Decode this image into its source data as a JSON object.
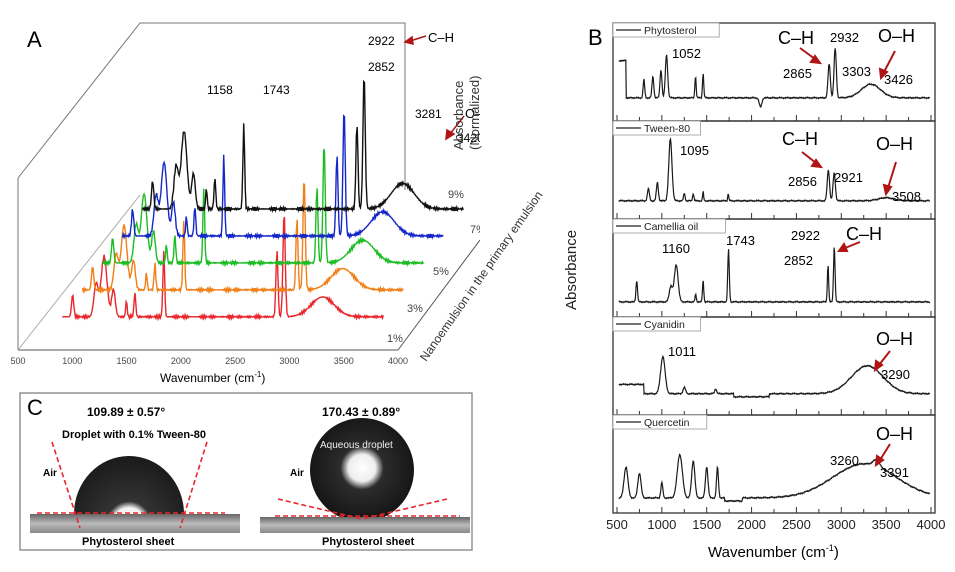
{
  "chart_data": [
    {
      "panel": "A",
      "type": "line",
      "title": "",
      "xlabel": "Wavenumber (cm-1)",
      "ylabel": "Absorbance (Normalized)",
      "zlabel": "Nanoemulsion in the primary emulsion",
      "xlim": [
        500,
        4000
      ],
      "x_ticks": [
        "500",
        "1000",
        "1500",
        "2000",
        "2500",
        "3000",
        "3500",
        "4000"
      ],
      "series": [
        {
          "name": "1%",
          "color": "#e8262b",
          "offset": 0
        },
        {
          "name": "3%",
          "color": "#f07f17",
          "offset": 1
        },
        {
          "name": "5%",
          "color": "#1cbd22",
          "offset": 2
        },
        {
          "name": "7%",
          "color": "#1427c8",
          "offset": 3
        },
        {
          "name": "9%",
          "color": "#111111",
          "offset": 4
        }
      ],
      "annotations": [
        "1158",
        "1743",
        "2852",
        "2922",
        "C–H",
        "3281",
        "3420",
        "O–H"
      ],
      "peaks": [
        {
          "x": 1158,
          "label": "1158"
        },
        {
          "x": 1743,
          "label": "1743"
        },
        {
          "x": 2852,
          "label": "2852"
        },
        {
          "x": 2922,
          "label": "2922"
        },
        {
          "x": 3281,
          "label": "3281"
        },
        {
          "x": 3420,
          "label": "3420"
        }
      ],
      "panel_label": "A"
    },
    {
      "panel": "B",
      "type": "line",
      "xlabel": "Wavenumber (cm-1)",
      "ylabel": "Absorbance",
      "xlim": [
        500,
        4000
      ],
      "x_ticks": [
        "500",
        "1000",
        "1500",
        "2000",
        "2500",
        "3000",
        "3500",
        "4000"
      ],
      "panel_label": "B",
      "series": [
        {
          "name": "Phytosterol",
          "peaks": [
            "1052",
            "2865",
            "2932",
            "3303",
            "3426"
          ],
          "groups": [
            "C–H",
            "O–H"
          ]
        },
        {
          "name": "Tween-80",
          "peaks": [
            "1095",
            "2856",
            "2921",
            "3508"
          ],
          "groups": [
            "C–H",
            "O–H"
          ]
        },
        {
          "name": "Camellia oil",
          "peaks": [
            "1160",
            "1743",
            "2852",
            "2922"
          ],
          "groups": [
            "C–H"
          ]
        },
        {
          "name": "Cyanidin",
          "peaks": [
            "1011",
            "3290"
          ],
          "groups": [
            "O–H"
          ]
        },
        {
          "name": "Quercetin",
          "peaks": [
            "3260",
            "3391"
          ],
          "groups": [
            "O–H"
          ]
        }
      ]
    }
  ],
  "panelA": {
    "label": "A",
    "xlabel": "Wavenumber (cm",
    "xlabel_sup": "-1",
    "xlabel_end": ")",
    "ylabel1": "Absorbance",
    "ylabel2": "(Normalized)",
    "zlabel": "Nanoemulsion in the primary emulsion",
    "ticks": [
      "500",
      "1000",
      "1500",
      "2000",
      "2500",
      "3000",
      "3500",
      "4000"
    ],
    "series_labels": [
      "1%",
      "3%",
      "5%",
      "7%",
      "9%"
    ],
    "ann": {
      "p1158": "1158",
      "p1743": "1743",
      "p2852": "2852",
      "p2922": "2922",
      "ch": "C–H",
      "p3281": "3281",
      "p3420": "3420",
      "oh": "O–H"
    }
  },
  "panelB": {
    "label": "B",
    "ylabel": "Absorbance",
    "xlabel": "Wavenumber (cm",
    "xlabel_sup": "-1",
    "xlabel_end": ")",
    "ticks": [
      "500",
      "1000",
      "1500",
      "2000",
      "2500",
      "3000",
      "3500",
      "4000"
    ],
    "rows": [
      {
        "legend": "Phytosterol",
        "labels": [
          "1052",
          "2865",
          "2932",
          "3303",
          "3426"
        ],
        "groups": [
          "C–H",
          "O–H"
        ]
      },
      {
        "legend": "Tween-80",
        "labels": [
          "1095",
          "2856",
          "2921",
          "3508"
        ],
        "groups": [
          "C–H",
          "O–H"
        ]
      },
      {
        "legend": "Camellia oil",
        "labels": [
          "1160",
          "1743",
          "2922",
          "2852"
        ],
        "groups": [
          "C–H"
        ]
      },
      {
        "legend": "Cyanidin",
        "labels": [
          "1011",
          "3290"
        ],
        "groups": [
          "O–H"
        ]
      },
      {
        "legend": "Quercetin",
        "labels": [
          "3260",
          "3391"
        ],
        "groups": [
          "O–H"
        ]
      }
    ]
  },
  "panelC": {
    "label": "C",
    "left": {
      "angle": "109.89 ± 0.57°",
      "caption": "Droplet with 0.1% Tween-80",
      "air": "Air",
      "sheet": "Phytosterol sheet"
    },
    "right": {
      "angle": "170.43 ± 0.89°",
      "caption": "Aqueous droplet",
      "air": "Air",
      "sheet": "Phytosterol sheet"
    }
  },
  "colors": {
    "arrow": "#b01515",
    "dash": "#e8262b"
  }
}
